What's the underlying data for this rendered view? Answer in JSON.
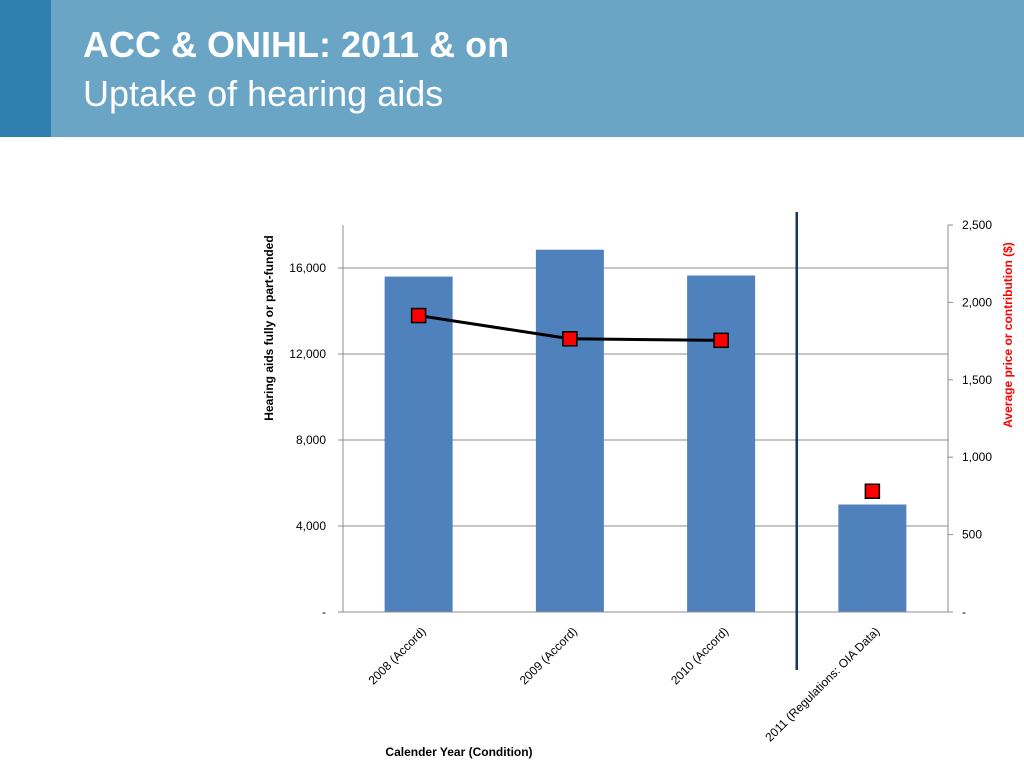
{
  "slide": {
    "title": "ACC & ONIHL: 2011 & on",
    "subtitle": "Uptake of hearing aids"
  },
  "colors": {
    "header": "#6aa5c6",
    "header_tab": "#2f7fae",
    "bar": "#4f81bd",
    "marker": "#ff0000",
    "line": "#000000",
    "divider": "#17375e",
    "y2_title": "#ff0000"
  },
  "chart_data": {
    "type": "bar",
    "categories": [
      "2008 (Accord)",
      "2009 (Accord)",
      "2010 (Accord)",
      "2011 (Regulations: OIA Data)"
    ],
    "series": [
      {
        "name": "",
        "type": "bar",
        "axis": "y",
        "values": [
          15600,
          16850,
          15650,
          5000
        ]
      },
      {
        "name": "",
        "type": "line",
        "axis": "y2",
        "values": [
          1915,
          1765,
          1755,
          780
        ],
        "connected_through_index": 2
      }
    ],
    "xlabel": "Calender Year (Condition)",
    "ylabel": "Hearing aids fully or part-funded",
    "y2label": "Average price or contribution ($)",
    "ylim": [
      0,
      18000
    ],
    "y2lim": [
      0,
      2500
    ],
    "yticks": [
      0,
      4000,
      8000,
      12000,
      16000
    ],
    "ytick_labels": [
      "-",
      "4,000",
      "8,000",
      "12,000",
      "16,000"
    ],
    "y2ticks": [
      0,
      500,
      1000,
      1500,
      2000,
      2500
    ],
    "y2tick_labels": [
      "-",
      "500",
      "1,000",
      "1,500",
      "2,000",
      "2,500"
    ],
    "divider_after_index": 2,
    "grid": true,
    "legend": "none"
  }
}
